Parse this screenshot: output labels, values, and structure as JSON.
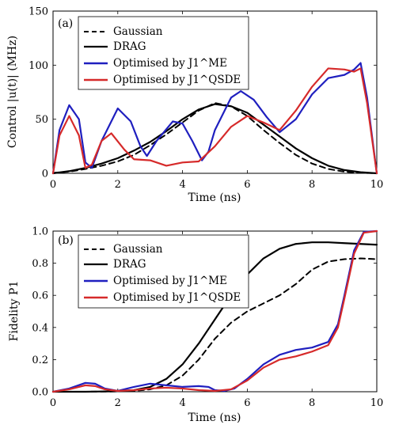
{
  "chart_data": [
    {
      "type": "line",
      "panel_label": "(a)",
      "xlabel": "Time (ns)",
      "ylabel": "Control |u(t)| (MHz)",
      "xlim": [
        0,
        10
      ],
      "ylim": [
        0,
        150
      ],
      "xticks": [
        "0",
        "2",
        "4",
        "6",
        "8",
        "10"
      ],
      "yticks": [
        "0",
        "50",
        "100",
        "150"
      ],
      "legend_position": "top-left",
      "series": [
        {
          "name": "Gaussian",
          "color": "#000000",
          "style": "dashed",
          "x": [
            0,
            0.5,
            1,
            1.5,
            2,
            2.5,
            3,
            3.5,
            4,
            4.5,
            5,
            5.5,
            6,
            6.5,
            7,
            7.5,
            8,
            8.5,
            9,
            9.5,
            10
          ],
          "y": [
            0.5,
            1.5,
            4,
            7,
            11,
            17,
            26,
            36,
            47,
            58,
            65,
            62,
            53,
            40,
            28,
            17,
            9,
            4,
            1.5,
            0.5,
            0
          ]
        },
        {
          "name": "DRAG",
          "color": "#000000",
          "style": "solid",
          "x": [
            0,
            0.5,
            1,
            1.5,
            2,
            2.5,
            3,
            3.5,
            4,
            4.5,
            5,
            5.5,
            6,
            6.5,
            7,
            7.5,
            8,
            8.5,
            9,
            9.5,
            10
          ],
          "y": [
            0,
            2,
            5,
            9,
            14,
            21,
            29,
            39,
            50,
            59,
            64,
            62,
            56,
            45,
            34,
            23,
            14,
            7,
            3,
            1,
            0
          ]
        },
        {
          "name": "Optimised by J1^ME",
          "color": "#1f1fbf",
          "style": "solid",
          "x": [
            0,
            0.2,
            0.5,
            0.8,
            1.0,
            1.2,
            1.5,
            2.0,
            2.4,
            2.7,
            2.9,
            3.2,
            3.7,
            4.0,
            4.3,
            4.6,
            4.8,
            5.0,
            5.5,
            5.8,
            6.2,
            6.6,
            7.0,
            7.5,
            8.0,
            8.5,
            9.0,
            9.3,
            9.5,
            9.7,
            10
          ],
          "y": [
            0,
            40,
            63,
            50,
            10,
            5,
            30,
            60,
            48,
            25,
            16,
            30,
            48,
            46,
            30,
            12,
            20,
            40,
            70,
            76,
            68,
            52,
            38,
            50,
            73,
            88,
            91,
            96,
            102,
            70,
            0
          ]
        },
        {
          "name": "Optimised by J1^QSDE",
          "color": "#d62a2a",
          "style": "solid",
          "x": [
            0,
            0.2,
            0.5,
            0.8,
            1.0,
            1.2,
            1.5,
            1.8,
            2.2,
            2.5,
            3.0,
            3.5,
            4.0,
            4.5,
            5.0,
            5.5,
            6.0,
            6.5,
            7.0,
            7.5,
            8.0,
            8.5,
            9.0,
            9.3,
            9.5,
            9.7,
            10
          ],
          "y": [
            0,
            35,
            53,
            35,
            5,
            8,
            30,
            37,
            22,
            13,
            12,
            7,
            10,
            11,
            25,
            43,
            53,
            47,
            40,
            58,
            80,
            97,
            96,
            94,
            97,
            65,
            0
          ]
        }
      ]
    },
    {
      "type": "line",
      "panel_label": "(b)",
      "xlabel": "Time (ns)",
      "ylabel": "Fidelity P1",
      "xlim": [
        0,
        10
      ],
      "ylim": [
        0,
        1
      ],
      "xticks": [
        "0",
        "2",
        "4",
        "6",
        "8",
        "10"
      ],
      "yticks": [
        "0.0",
        "0.2",
        "0.4",
        "0.6",
        "0.8",
        "1.0"
      ],
      "legend_position": "top-left",
      "series": [
        {
          "name": "Gaussian",
          "color": "#000000",
          "style": "dashed",
          "x": [
            0,
            1,
            2,
            2.5,
            3,
            3.5,
            4,
            4.5,
            5,
            5.5,
            6,
            6.5,
            7,
            7.5,
            8,
            8.5,
            9,
            9.5,
            10
          ],
          "y": [
            0,
            0,
            0.002,
            0.005,
            0.015,
            0.04,
            0.1,
            0.2,
            0.33,
            0.43,
            0.5,
            0.55,
            0.6,
            0.67,
            0.76,
            0.81,
            0.825,
            0.83,
            0.825
          ]
        },
        {
          "name": "DRAG",
          "color": "#000000",
          "style": "solid",
          "x": [
            0,
            1,
            2,
            2.5,
            3,
            3.5,
            4,
            4.5,
            5,
            5.5,
            6,
            6.5,
            7,
            7.5,
            8,
            8.5,
            9,
            9.5,
            10
          ],
          "y": [
            0,
            0,
            0.003,
            0.01,
            0.03,
            0.08,
            0.17,
            0.3,
            0.45,
            0.6,
            0.73,
            0.83,
            0.89,
            0.92,
            0.93,
            0.93,
            0.925,
            0.92,
            0.915
          ]
        },
        {
          "name": "Optimised by J1^ME",
          "color": "#1f1fbf",
          "style": "solid",
          "x": [
            0,
            0.5,
            1.0,
            1.3,
            1.6,
            2.0,
            2.5,
            3.0,
            3.5,
            4.0,
            4.5,
            4.8,
            5.0,
            5.3,
            5.6,
            6.0,
            6.5,
            7.0,
            7.5,
            8.0,
            8.5,
            8.8,
            9.0,
            9.3,
            9.6,
            10
          ],
          "y": [
            0,
            0.02,
            0.055,
            0.05,
            0.02,
            0.005,
            0.03,
            0.05,
            0.04,
            0.03,
            0.035,
            0.03,
            0.01,
            0.005,
            0.02,
            0.08,
            0.17,
            0.23,
            0.26,
            0.275,
            0.31,
            0.42,
            0.6,
            0.88,
            0.995,
            1.0
          ]
        },
        {
          "name": "Optimised by J1^QSDE",
          "color": "#d62a2a",
          "style": "solid",
          "x": [
            0,
            0.5,
            1.0,
            1.3,
            1.6,
            2.0,
            2.5,
            3.0,
            3.5,
            4.0,
            4.5,
            5.0,
            5.5,
            6.0,
            6.5,
            7.0,
            7.5,
            8.0,
            8.5,
            8.8,
            9.0,
            9.3,
            9.6,
            10
          ],
          "y": [
            0,
            0.015,
            0.04,
            0.035,
            0.015,
            0.005,
            0.01,
            0.02,
            0.025,
            0.02,
            0.01,
            0.005,
            0.015,
            0.07,
            0.15,
            0.2,
            0.22,
            0.25,
            0.29,
            0.4,
            0.58,
            0.86,
            0.99,
            1.0
          ]
        }
      ]
    }
  ]
}
